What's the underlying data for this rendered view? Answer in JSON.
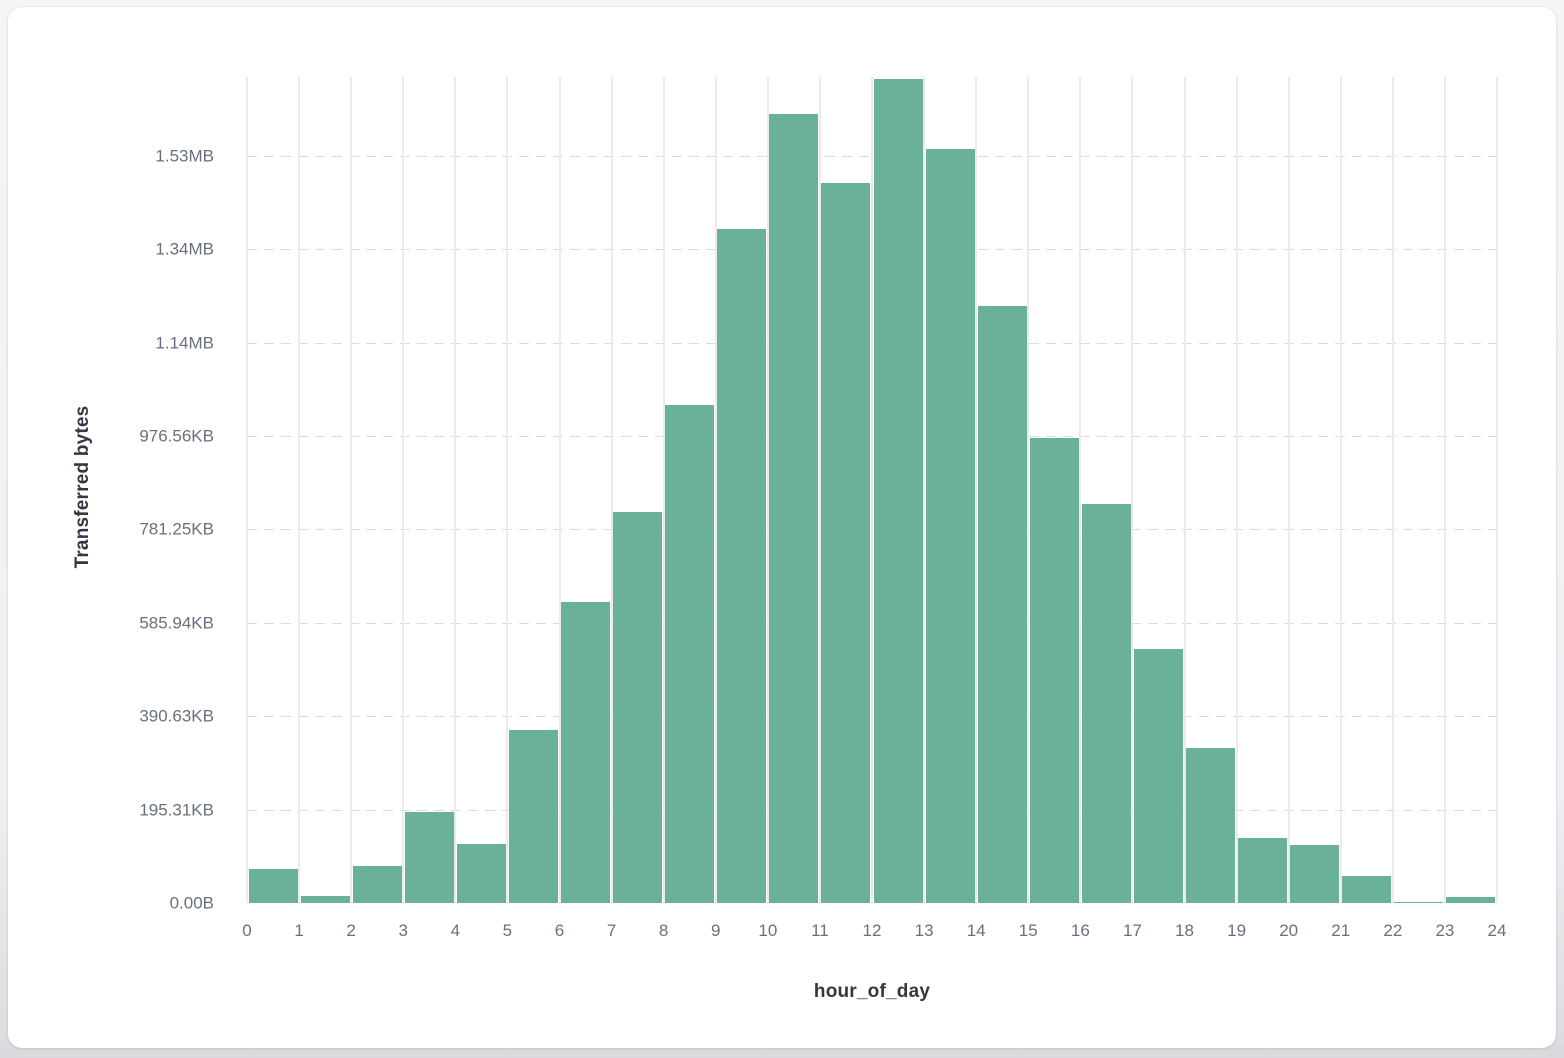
{
  "colors": {
    "bar": "#6ab198",
    "tick_label": "#69707d",
    "axis_title": "#343741",
    "vgrid": "#e9ebef",
    "hgrid_dash": "#d8dbe1",
    "card_bg": "#ffffff"
  },
  "chart_data": {
    "type": "bar",
    "title": "",
    "xlabel": "hour_of_day",
    "ylabel": "Transferred bytes",
    "x_unit": "hour bins 0-23, bin width 1",
    "x": [
      0,
      1,
      2,
      3,
      4,
      5,
      6,
      7,
      8,
      9,
      10,
      11,
      12,
      13,
      14,
      15,
      16,
      17,
      18,
      19,
      20,
      21,
      22,
      23
    ],
    "values_bytes": [
      73500,
      15000,
      78600,
      194500,
      127000,
      369900,
      644700,
      837000,
      1067500,
      1443500,
      1689100,
      1542800,
      1764100,
      1614100,
      1278600,
      996400,
      855000,
      545000,
      332100,
      139400,
      123750,
      57200,
      3200,
      12200
    ],
    "x_ticks": [
      "0",
      "1",
      "2",
      "3",
      "4",
      "5",
      "6",
      "7",
      "8",
      "9",
      "10",
      "11",
      "12",
      "13",
      "14",
      "15",
      "16",
      "17",
      "18",
      "19",
      "20",
      "21",
      "22",
      "23",
      "24"
    ],
    "y_ticks": [
      {
        "v": 0,
        "label": "0.00B"
      },
      {
        "v": 200000,
        "label": "195.31KB"
      },
      {
        "v": 400000,
        "label": "390.63KB"
      },
      {
        "v": 600000,
        "label": "585.94KB"
      },
      {
        "v": 800000,
        "label": "781.25KB"
      },
      {
        "v": 1000000,
        "label": "976.56KB"
      },
      {
        "v": 1200000,
        "label": "1.14MB"
      },
      {
        "v": 1400000,
        "label": "1.34MB"
      },
      {
        "v": 1600000,
        "label": "1.53MB"
      }
    ],
    "xlim": [
      0,
      24
    ],
    "ylim": [
      0,
      1769000
    ],
    "grid": true,
    "legend": false
  }
}
